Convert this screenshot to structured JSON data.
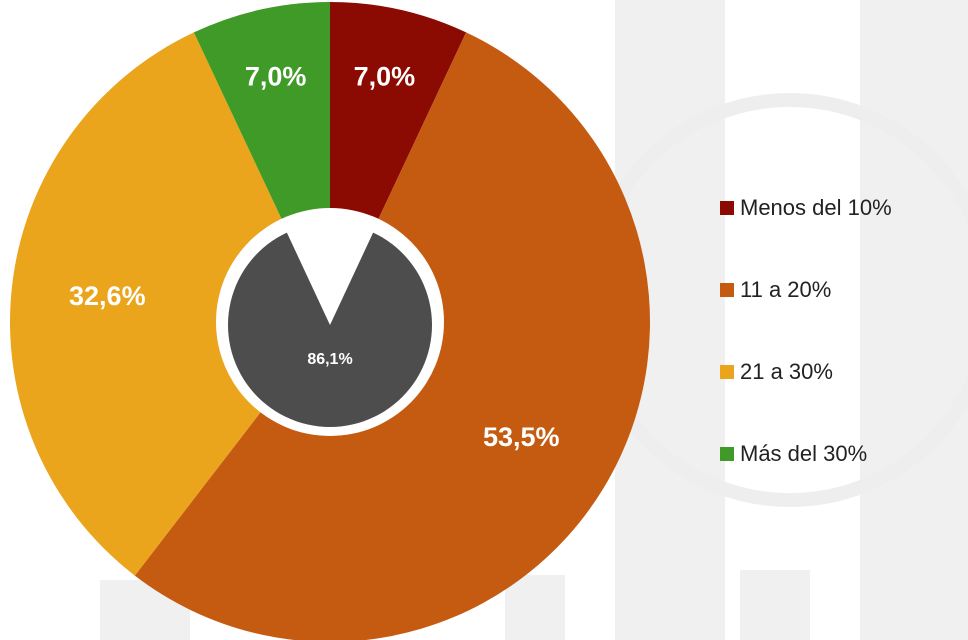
{
  "chart_data": [
    {
      "type": "pie",
      "categories": [
        "Menos del 10%",
        "11 a 20%",
        "21 a 30%",
        "Más del 30%"
      ],
      "values": [
        7.0,
        53.5,
        32.6,
        7.0
      ],
      "value_labels": [
        "7,0%",
        "53,5%",
        "32,6%",
        "7,0%"
      ],
      "colors": [
        "#8b0a02",
        "#c55a11",
        "#eaa51c",
        "#3f9a27"
      ],
      "legend": "right"
    },
    {
      "type": "pie",
      "values": [
        86.1
      ],
      "value_labels": [
        "86,1%"
      ],
      "colors": [
        "#4d4d4d"
      ]
    }
  ]
}
